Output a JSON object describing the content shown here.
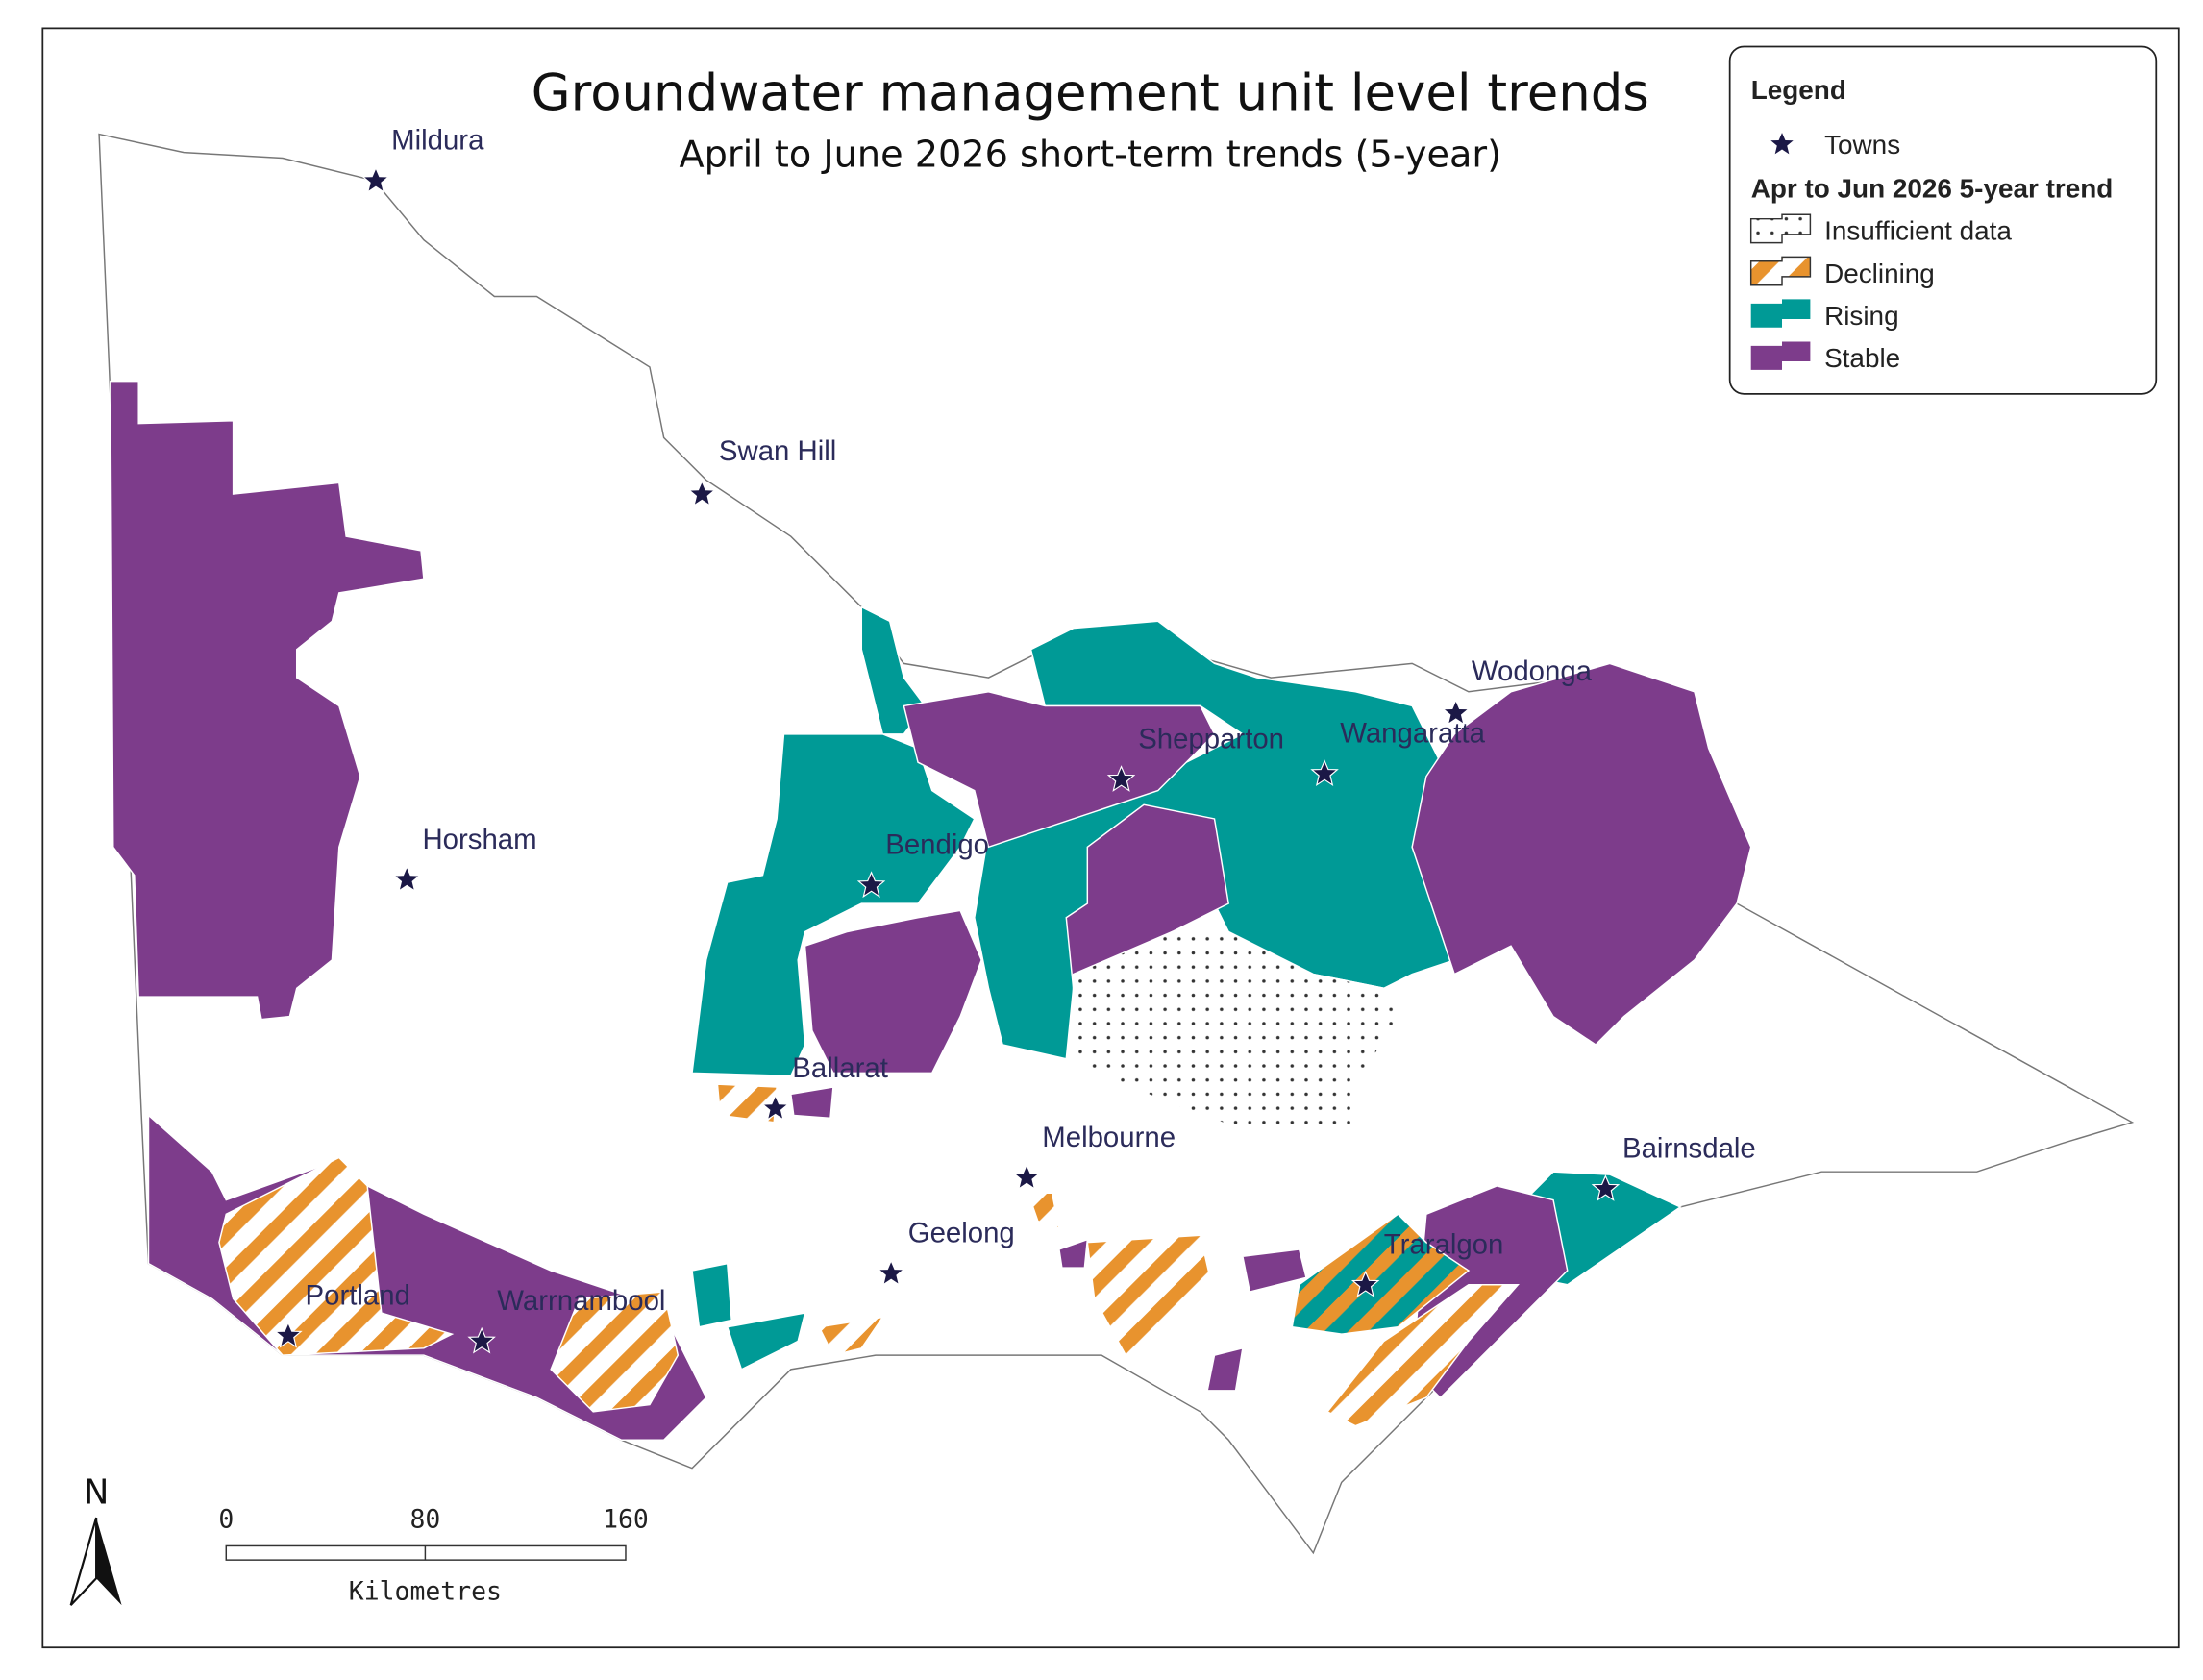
{
  "title": "Groundwater management unit level trends",
  "subtitle": "April to June 2026 short-term trends (5-year)",
  "legend": {
    "title": "Legend",
    "towns_label": "Towns",
    "trend_title": "Apr to Jun 2026 5-year trend",
    "items": [
      "Insufficient data",
      "Declining",
      "Rising",
      "Stable"
    ]
  },
  "towns": [
    "Mildura",
    "Swan Hill",
    "Horsham",
    "Bendigo",
    "Shepparton",
    "Wangaratta",
    "Wodonga",
    "Ballarat",
    "Melbourne",
    "Geelong",
    "Bairnsdale",
    "Traralgon",
    "Portland",
    "Warrnambool"
  ],
  "scale_bar": {
    "ticks": [
      0,
      80,
      160
    ],
    "unit": "Kilometres"
  },
  "north": "N"
}
